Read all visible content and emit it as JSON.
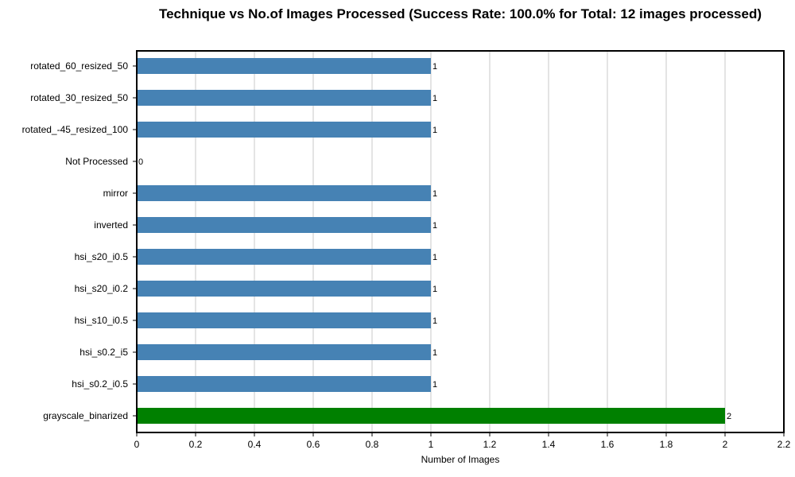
{
  "chart_data": {
    "type": "bar",
    "orientation": "horizontal",
    "title": "Technique vs No.of Images Processed (Success Rate: 100.0% for Total: 12 images processed)",
    "xlabel": "Number of Images",
    "ylabel": "",
    "xlim": [
      0,
      2.2
    ],
    "xticks": [
      "0",
      "0.2",
      "0.4",
      "0.6",
      "0.8",
      "1",
      "1.2",
      "1.4",
      "1.6",
      "1.8",
      "2",
      "2.2"
    ],
    "grid": "vertical",
    "categories": [
      "rotated_60_resized_50",
      "rotated_30_resized_50",
      "rotated_-45_resized_100",
      "Not Processed",
      "mirror",
      "inverted",
      "hsi_s20_i0.5",
      "hsi_s20_i0.2",
      "hsi_s10_i0.5",
      "hsi_s0.2_i5",
      "hsi_s0.2_i0.5",
      "grayscale_binarized"
    ],
    "values": [
      1,
      1,
      1,
      0,
      1,
      1,
      1,
      1,
      1,
      1,
      1,
      2
    ],
    "value_labels": [
      "1",
      "1",
      "1",
      "0",
      "1",
      "1",
      "1",
      "1",
      "1",
      "1",
      "1",
      "2"
    ],
    "colors": [
      "#4682b4",
      "#4682b4",
      "#4682b4",
      "#4682b4",
      "#4682b4",
      "#4682b4",
      "#4682b4",
      "#4682b4",
      "#4682b4",
      "#4682b4",
      "#4682b4",
      "#008000"
    ]
  }
}
